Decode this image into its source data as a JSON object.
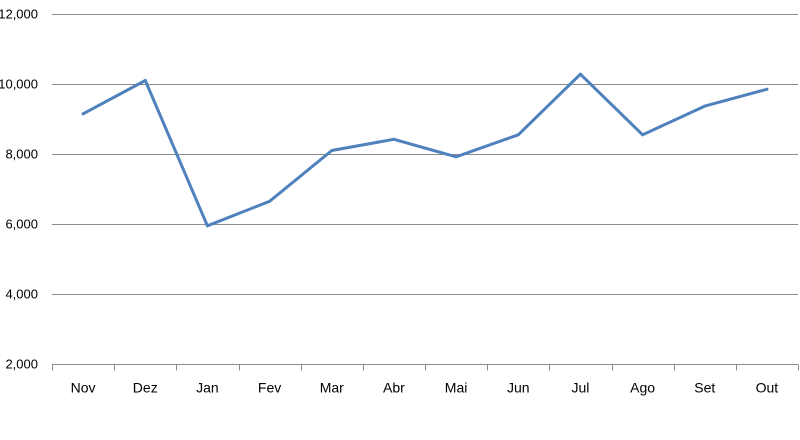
{
  "chart_data": {
    "type": "line",
    "title": "",
    "xlabel": "",
    "ylabel": "",
    "categories": [
      "Nov",
      "Dez",
      "Jan",
      "Fev",
      "Mar",
      "Abr",
      "Mai",
      "Jun",
      "Jul",
      "Ago",
      "Set",
      "Out"
    ],
    "series": [
      {
        "values": [
          9150,
          10100,
          5950,
          6650,
          8100,
          8420,
          7920,
          8550,
          10280,
          8550,
          9370,
          9850
        ],
        "color": "#4f81bd"
      }
    ],
    "ylim": [
      2000,
      12000
    ],
    "yticks": [
      2000,
      4000,
      6000,
      8000,
      10000,
      12000
    ],
    "ytick_labels": [
      "2,000",
      "4,000",
      "6,000",
      "8,000",
      "10,000",
      "12,000"
    ],
    "grid": "horizontal",
    "legend": "none"
  }
}
